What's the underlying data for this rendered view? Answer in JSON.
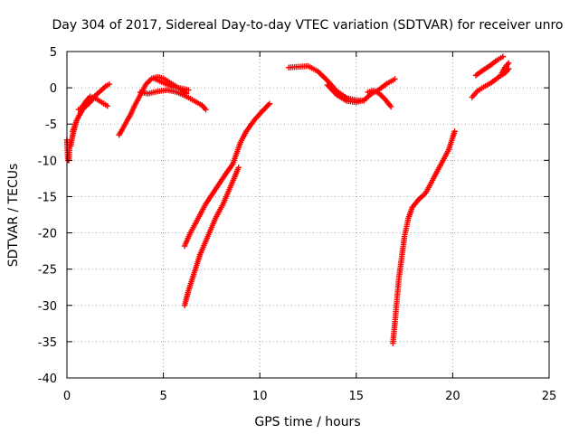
{
  "chart_data": {
    "type": "scatter",
    "title": "Day 304 of 2017, Sidereal Day-to-day VTEC variation (SDTVAR) for receiver unro",
    "xlabel": "GPS time / hours",
    "ylabel": "SDTVAR / TECUs",
    "xlim": [
      0,
      25
    ],
    "ylim": [
      -40,
      5
    ],
    "xticks": [
      0,
      5,
      10,
      15,
      20,
      25
    ],
    "yticks": [
      -40,
      -35,
      -30,
      -25,
      -20,
      -15,
      -10,
      -5,
      0,
      5
    ],
    "xtick_labels": [
      "0",
      "5",
      "10",
      "15",
      "20",
      "25"
    ],
    "ytick_labels": [
      "-40",
      "-35",
      "-30",
      "-25",
      "-20",
      "-15",
      "-10",
      "-5",
      "0",
      "5"
    ],
    "grid": true,
    "marker": "plus",
    "point_color": "#ff0000",
    "series": [
      {
        "name": "s1",
        "x": [
          0.0,
          0.05,
          0.1,
          0.15
        ],
        "y": [
          -7.2,
          -10,
          -10,
          -7.5
        ]
      },
      {
        "name": "s2",
        "x": [
          0.2,
          0.3,
          0.4,
          0.5,
          0.7,
          0.9,
          1.1
        ],
        "y": [
          -8.0,
          -6.5,
          -5.5,
          -4.5,
          -3.5,
          -2.6,
          -1.8
        ]
      },
      {
        "name": "s3",
        "x": [
          0.3,
          0.5,
          0.8,
          1.0,
          1.2,
          1.5,
          1.8,
          2.0,
          2.2
        ],
        "y": [
          -6.0,
          -4.5,
          -3.0,
          -2.5,
          -2.0,
          -1.0,
          -0.3,
          0.2,
          0.5
        ]
      },
      {
        "name": "s4",
        "x": [
          0.6,
          0.8,
          1.0,
          1.2,
          1.5,
          1.8,
          2.1
        ],
        "y": [
          -3.0,
          -2.6,
          -1.8,
          -1.2,
          -1.5,
          -2.0,
          -2.5
        ]
      },
      {
        "name": "s5",
        "x": [
          2.7,
          2.9,
          3.1,
          3.3,
          3.5,
          3.7,
          3.9,
          4.1,
          4.4,
          4.7,
          5.0,
          5.3,
          5.6,
          5.9,
          6.2
        ],
        "y": [
          -6.5,
          -5.6,
          -4.6,
          -3.7,
          -2.5,
          -1.5,
          -0.5,
          0.5,
          1.3,
          1.5,
          1.3,
          0.8,
          0.3,
          -0.2,
          -0.8
        ]
      },
      {
        "name": "s6",
        "x": [
          3.8,
          4.2,
          4.7,
          5.2,
          5.7,
          6.2,
          6.6,
          7.0,
          7.2
        ],
        "y": [
          -0.6,
          -0.8,
          -0.5,
          -0.3,
          -0.6,
          -1.2,
          -1.8,
          -2.4,
          -3.0
        ]
      },
      {
        "name": "s7",
        "x": [
          4.5,
          5.0,
          5.5,
          6.0,
          6.3
        ],
        "y": [
          1.3,
          0.7,
          0.1,
          -0.1,
          -0.3
        ]
      },
      {
        "name": "s8",
        "x": [
          6.1,
          6.4,
          6.8,
          7.2,
          7.7,
          8.2,
          8.6,
          8.8,
          9.0,
          9.3,
          9.7,
          10.1,
          10.5
        ],
        "y": [
          -21.8,
          -20.0,
          -18.0,
          -16.0,
          -14.0,
          -12.0,
          -10.5,
          -9.0,
          -7.5,
          -6.0,
          -4.5,
          -3.3,
          -2.2
        ]
      },
      {
        "name": "s9",
        "x": [
          6.1,
          6.3,
          6.6,
          6.9,
          7.3,
          7.7,
          8.1,
          8.5,
          8.9
        ],
        "y": [
          -30.0,
          -28.0,
          -25.5,
          -23.0,
          -20.5,
          -18.0,
          -16.0,
          -13.5,
          -11.0
        ]
      },
      {
        "name": "s10",
        "x": [
          11.5,
          12.0,
          12.5,
          13.0,
          13.5,
          14.0,
          14.5,
          15.0,
          15.4
        ],
        "y": [
          2.8,
          2.9,
          3.0,
          2.3,
          1.0,
          -0.5,
          -1.4,
          -1.7,
          -1.8
        ]
      },
      {
        "name": "s11",
        "x": [
          13.5,
          14.0,
          14.5,
          15.0,
          15.4,
          15.8,
          16.2,
          16.6,
          17.0
        ],
        "y": [
          0.4,
          -1.0,
          -1.8,
          -2.0,
          -1.7,
          -0.8,
          -0.2,
          0.6,
          1.2
        ]
      },
      {
        "name": "s12",
        "x": [
          15.6,
          15.9,
          16.2,
          16.5,
          16.8
        ],
        "y": [
          -0.6,
          -0.4,
          -0.8,
          -1.6,
          -2.6
        ]
      },
      {
        "name": "s13",
        "x": [
          16.9,
          17.0,
          17.1,
          17.2,
          17.35,
          17.5,
          17.7,
          17.9,
          18.2,
          18.6,
          19.0,
          19.4,
          19.8,
          20.1
        ],
        "y": [
          -35.2,
          -32.5,
          -29.5,
          -26.5,
          -23.5,
          -20.5,
          -18.0,
          -16.5,
          -15.5,
          -14.5,
          -12.5,
          -10.5,
          -8.5,
          -6.0
        ]
      },
      {
        "name": "s14",
        "x": [
          21.0,
          21.3,
          21.6,
          22.0,
          22.4,
          22.7,
          22.9
        ],
        "y": [
          -1.3,
          -0.4,
          0.1,
          0.7,
          1.5,
          2.0,
          2.6
        ]
      },
      {
        "name": "s15",
        "x": [
          21.2,
          21.5,
          21.9,
          22.3,
          22.6
        ],
        "y": [
          1.7,
          2.3,
          3.0,
          3.8,
          4.3
        ]
      },
      {
        "name": "s16",
        "x": [
          22.5,
          22.7,
          22.9
        ],
        "y": [
          1.8,
          2.8,
          3.4
        ]
      }
    ]
  }
}
